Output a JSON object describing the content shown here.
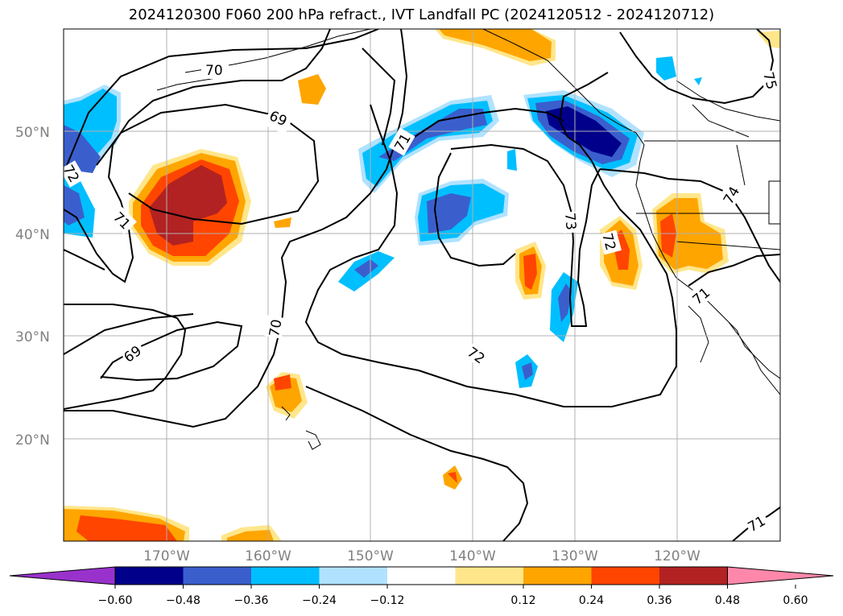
{
  "title": "2024120300 F060 200 hPa refract., IVT Landfall PC (2024120512 - 2024120712)",
  "map": {
    "lat_labels": [
      "50°N",
      "40°N",
      "30°N",
      "20°N"
    ],
    "lon_labels": [
      "170°W",
      "160°W",
      "150°W",
      "140°W",
      "130°W",
      "120°W"
    ],
    "contour_labels": [
      "70",
      "69",
      "71",
      "72",
      "71",
      "73",
      "72",
      "72",
      "70",
      "69",
      "71",
      "74",
      "75",
      "71"
    ]
  },
  "colorbar": {
    "ticks": [
      "−0.60",
      "−0.48",
      "−0.36",
      "−0.24",
      "−0.12",
      "0.12",
      "0.24",
      "0.36",
      "0.48",
      "0.60"
    ],
    "colors": [
      "#9932cc",
      "#00008b",
      "#3a5fcd",
      "#00bfff",
      "#b0e2ff",
      "#ffffff",
      "#ffe68a",
      "#ffa500",
      "#ff4500",
      "#b22222",
      "#ff88aa"
    ]
  }
}
